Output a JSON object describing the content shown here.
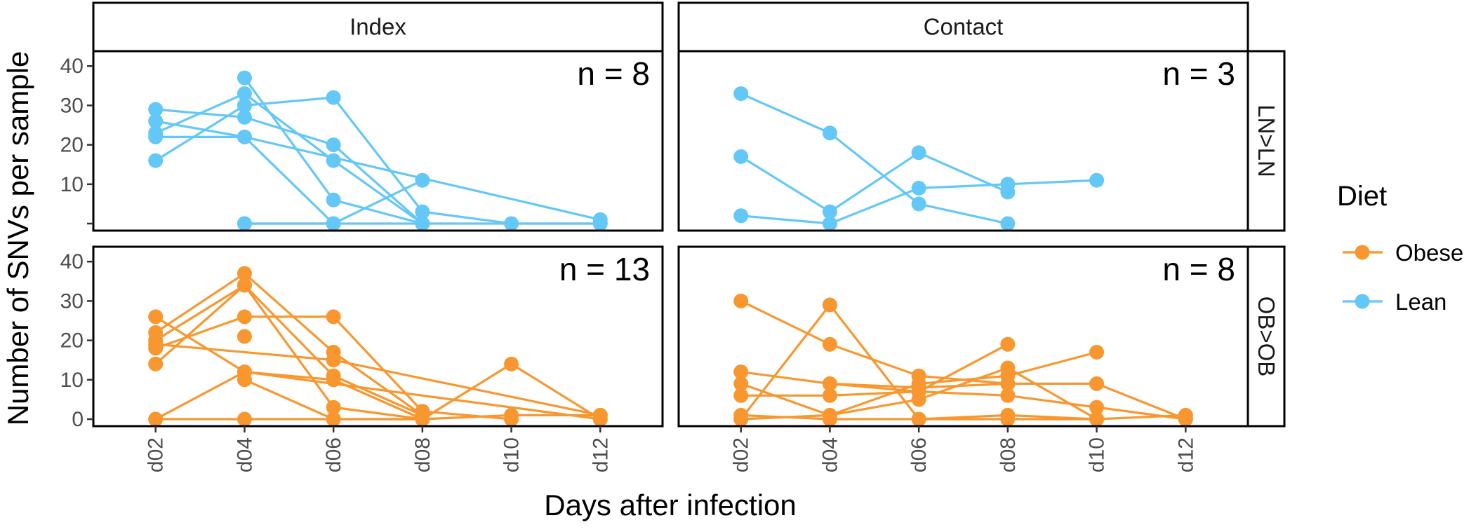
{
  "chart_data": {
    "type": "line",
    "xlabel": "Days after infection",
    "ylabel": "Number of SNVs per sample",
    "x_categories": [
      "d02",
      "d04",
      "d06",
      "d08",
      "d10",
      "d12"
    ],
    "y_ticks": [
      0,
      10,
      20,
      30,
      40
    ],
    "ylim": [
      0,
      42
    ],
    "grid": false,
    "column_facets": [
      "Index",
      "Contact"
    ],
    "row_facets": [
      "LN>LN",
      "OB>OB"
    ],
    "legend": {
      "title": "Diet",
      "position": "right",
      "entries": [
        {
          "label": "Obese",
          "color": "#F8972F"
        },
        {
          "label": "Lean",
          "color": "#63C7F7"
        }
      ]
    },
    "panels": [
      {
        "column": "Index",
        "row": "LN>LN",
        "n_label": "n = 8",
        "diet": "Lean",
        "y_ticks_shown": [
          "10",
          "20",
          "30",
          "40"
        ],
        "lines": [
          [
            [
              "d02",
              29
            ],
            [
              "d04",
              27
            ],
            [
              "d06",
              20
            ],
            [
              "d08",
              0
            ]
          ],
          [
            [
              "d02",
              26
            ],
            [
              "d04",
              22
            ],
            [
              "d06",
              0
            ]
          ],
          [
            [
              "d02",
              23
            ],
            [
              "d04",
              33
            ],
            [
              "d06",
              16
            ],
            [
              "d08",
              0
            ]
          ],
          [
            [
              "d02",
              22
            ],
            [
              "d04",
              22
            ],
            [
              "d12",
              1
            ]
          ],
          [
            [
              "d02",
              16
            ],
            [
              "d04",
              30
            ],
            [
              "d06",
              32
            ],
            [
              "d08",
              3
            ],
            [
              "d10",
              0
            ],
            [
              "d12",
              0
            ]
          ],
          [
            [
              "d04",
              37
            ],
            [
              "d06",
              6
            ],
            [
              "d08",
              0
            ]
          ],
          [
            [
              "d04",
              0
            ],
            [
              "d06",
              0
            ],
            [
              "d08",
              11
            ]
          ],
          [
            [
              "d04",
              0
            ],
            [
              "d12",
              0
            ]
          ]
        ]
      },
      {
        "column": "Contact",
        "row": "LN>LN",
        "n_label": "n = 3",
        "diet": "Lean",
        "lines": [
          [
            [
              "d02",
              33
            ],
            [
              "d04",
              23
            ],
            [
              "d06",
              5
            ],
            [
              "d08",
              0
            ]
          ],
          [
            [
              "d02",
              17
            ],
            [
              "d04",
              3
            ],
            [
              "d06",
              18
            ],
            [
              "d08",
              8
            ]
          ],
          [
            [
              "d02",
              2
            ],
            [
              "d04",
              0
            ],
            [
              "d06",
              9
            ],
            [
              "d08",
              10
            ],
            [
              "d10",
              11
            ]
          ]
        ]
      },
      {
        "column": "Index",
        "row": "OB>OB",
        "n_label": "n = 13",
        "diet": "Obese",
        "lines": [
          [
            [
              "d02",
              26
            ],
            [
              "d04",
              12
            ],
            [
              "d06",
              10
            ],
            [
              "d08",
              0
            ]
          ],
          [
            [
              "d02",
              22
            ],
            [
              "d04",
              37
            ],
            [
              "d06",
              17
            ],
            [
              "d08",
              1
            ]
          ],
          [
            [
              "d02",
              20
            ],
            [
              "d04",
              34
            ],
            [
              "d06",
              3
            ],
            [
              "d08",
              0
            ]
          ],
          [
            [
              "d02",
              18
            ],
            [
              "d04",
              26
            ],
            [
              "d06",
              26
            ],
            [
              "d08",
              2
            ],
            [
              "d10",
              0
            ]
          ],
          [
            [
              "d02",
              14
            ],
            [
              "d04",
              34
            ],
            [
              "d06",
              11
            ],
            [
              "d08",
              1
            ]
          ],
          [
            [
              "d02",
              19
            ],
            [
              "d06",
              15
            ],
            [
              "d12",
              1
            ]
          ],
          [
            [
              "d04",
              10
            ],
            [
              "d06",
              0
            ],
            [
              "d08",
              0
            ],
            [
              "d10",
              14
            ],
            [
              "d12",
              0
            ]
          ],
          [
            [
              "d02",
              0
            ],
            [
              "d04",
              12
            ],
            [
              "d12",
              0
            ]
          ],
          [
            [
              "d02",
              0
            ],
            [
              "d04",
              0
            ],
            [
              "d06",
              0
            ],
            [
              "d08",
              0
            ],
            [
              "d10",
              1
            ],
            [
              "d12",
              1
            ]
          ],
          [
            [
              "d04",
              21
            ]
          ]
        ]
      },
      {
        "column": "Contact",
        "row": "OB>OB",
        "n_label": "n = 8",
        "diet": "Obese",
        "lines": [
          [
            [
              "d02",
              30
            ],
            [
              "d04",
              19
            ],
            [
              "d06",
              11
            ],
            [
              "d08",
              9
            ],
            [
              "d10",
              9
            ],
            [
              "d12",
              0
            ]
          ],
          [
            [
              "d02",
              12
            ],
            [
              "d04",
              9
            ],
            [
              "d06",
              7
            ],
            [
              "d08",
              19
            ]
          ],
          [
            [
              "d02",
              9
            ],
            [
              "d04",
              1
            ],
            [
              "d06",
              5
            ],
            [
              "d08",
              13
            ],
            [
              "d10",
              0
            ]
          ],
          [
            [
              "d02",
              6
            ],
            [
              "d04",
              6
            ],
            [
              "d06",
              7
            ],
            [
              "d08",
              6
            ],
            [
              "d10",
              3
            ],
            [
              "d12",
              0
            ]
          ],
          [
            [
              "d02",
              0
            ],
            [
              "d04",
              29
            ],
            [
              "d06",
              0
            ],
            [
              "d08",
              1
            ],
            [
              "d10",
              0
            ]
          ],
          [
            [
              "d02",
              1
            ],
            [
              "d04",
              0
            ],
            [
              "d06",
              0
            ],
            [
              "d08",
              0
            ],
            [
              "d10",
              0
            ],
            [
              "d12",
              1
            ]
          ],
          [
            [
              "d02",
              0
            ],
            [
              "d04",
              1
            ],
            [
              "d06",
              9
            ],
            [
              "d08",
              11
            ],
            [
              "d10",
              17
            ]
          ],
          [
            [
              "d04",
              9
            ],
            [
              "d06",
              8
            ],
            [
              "d08",
              9
            ]
          ]
        ]
      }
    ]
  }
}
